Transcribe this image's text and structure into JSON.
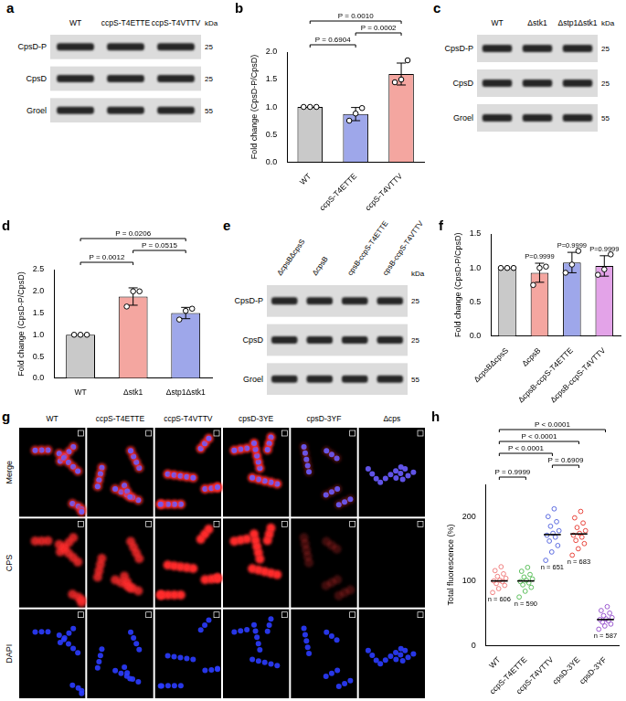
{
  "blots": [
    {
      "panel": "a",
      "lanes": [
        "WT",
        "ccpS-T4ETTE",
        "ccpS-T4VTTV"
      ],
      "rows": [
        "CpsD-P",
        "CpsD",
        "Groel"
      ],
      "markers": [
        25,
        25,
        55
      ],
      "marker_unit": "kDa"
    },
    {
      "panel": "c",
      "lanes": [
        "WT",
        "Δstk1",
        "Δstp1Δstk1"
      ],
      "rows": [
        "CpsD-P",
        "CpsD",
        "Groel"
      ],
      "markers": [
        25,
        25,
        55
      ],
      "marker_unit": "kDa"
    },
    {
      "panel": "e",
      "lanes": [
        "ΔcpsBΔcpsS",
        "ΔcpsB",
        "cpsB-ccpS-T4ETTE",
        "cpsB-ccpS-T4VTTV"
      ],
      "rows": [
        "CpsD-P",
        "CpsD",
        "Groel"
      ],
      "markers": [
        25,
        25,
        55
      ],
      "marker_unit": "kDa"
    }
  ],
  "micrographs": {
    "panel": "g",
    "columns": [
      "WT",
      "ccpS-T4ETTE",
      "ccpS-T4VTTV",
      "cpsD-3YE",
      "cpsD-3YF",
      "Δcps"
    ],
    "rows": [
      "Merge",
      "CPS",
      "DAPI"
    ]
  },
  "chart_data": [
    {
      "panel": "b",
      "type": "bar",
      "categories": [
        "WT",
        "ccpS-T4ETTE",
        "ccpS-T4VTTV"
      ],
      "values": [
        1.0,
        0.87,
        1.6
      ],
      "error": [
        0,
        0.12,
        0.2
      ],
      "points": [
        [
          1.0,
          1.0,
          1.0
        ],
        [
          0.75,
          0.88,
          0.98
        ],
        [
          1.45,
          1.5,
          1.85
        ]
      ],
      "colors": [
        "#c9c9c9",
        "#9ea7ea",
        "#f4a6a0"
      ],
      "y_label": "Fold change (CpsD-P/CpsD)",
      "ylim": [
        0,
        2
      ],
      "yticks": [
        {
          "value": 0,
          "label": "0.0"
        },
        0.5,
        {
          "value": 1,
          "label": "1.0"
        },
        1.5,
        {
          "value": 2,
          "label": "2.0"
        }
      ],
      "grid": false,
      "comparisons": [
        {
          "between": [
            "WT",
            "ccpS-T4ETTE"
          ],
          "label": "P = 0.6904"
        },
        {
          "between": [
            "ccpS-T4ETTE",
            "ccpS-T4VTTV"
          ],
          "label": "P = 0.0002"
        },
        {
          "between": [
            "WT",
            "ccpS-T4VTTV"
          ],
          "label": "P = 0.0010"
        }
      ]
    },
    {
      "panel": "d",
      "type": "bar",
      "categories": [
        "WT",
        "Δstk1",
        "Δstp1Δstk1"
      ],
      "values": [
        1.0,
        1.88,
        1.5
      ],
      "error": [
        0,
        0.2,
        0.13
      ],
      "points": [
        [
          1.0,
          1.0,
          1.0
        ],
        [
          1.65,
          2.0,
          2.0
        ],
        [
          1.35,
          1.55,
          1.6
        ]
      ],
      "colors": [
        "#c9c9c9",
        "#f4a6a0",
        "#9ea7ea"
      ],
      "y_label": "Fold change (CpsD-P/CpsD)",
      "ylim": [
        0,
        2.5
      ],
      "yticks": [
        {
          "value": 0,
          "label": "0.0"
        },
        0.5,
        {
          "value": 1,
          "label": "1.0"
        },
        1.5,
        {
          "value": 2,
          "label": "2.0"
        },
        2.5
      ],
      "grid": false,
      "comparisons": [
        {
          "between": [
            "WT",
            "Δstk1"
          ],
          "label": "P = 0.0012"
        },
        {
          "between": [
            "Δstk1",
            "Δstp1Δstk1"
          ],
          "label": "P = 0.0515"
        },
        {
          "between": [
            "WT",
            "Δstp1Δstk1"
          ],
          "label": "P = 0.0206"
        }
      ]
    },
    {
      "panel": "f",
      "type": "bar",
      "categories": [
        "ΔcpsBΔcpsS",
        "ΔcpsB",
        "ΔcpsB-ccpS-T4ETTE",
        "ΔcpsB-ccpS-T4VTTV"
      ],
      "values": [
        1.0,
        0.93,
        1.08,
        1.03
      ],
      "error": [
        0,
        0.14,
        0.15,
        0.15
      ],
      "points": [
        [
          1.0,
          1.0,
          1.0
        ],
        [
          0.75,
          1.0,
          1.02
        ],
        [
          0.93,
          1.05,
          1.25
        ],
        [
          0.9,
          0.98,
          1.2
        ]
      ],
      "colors": [
        "#c9c9c9",
        "#f4a6a0",
        "#9ea7ea",
        "#e3a3e8"
      ],
      "y_label": "Fold change (CpsD-P/CpsD)",
      "ylim": [
        0,
        1.5
      ],
      "yticks": [
        {
          "value": 0,
          "label": "0.0"
        },
        0.5,
        {
          "value": 1,
          "label": "1.0"
        },
        1.5
      ],
      "grid": false,
      "annotations": [
        {
          "category": "ΔcpsB",
          "label": "P=0.9999"
        },
        {
          "category": "ΔcpsB-ccpS-T4ETTE",
          "label": "P=0.9999"
        },
        {
          "category": "ΔcpsB-ccpS-T4VTTV",
          "label": "P=0.9999"
        }
      ]
    },
    {
      "panel": "h",
      "type": "scatter",
      "categories": [
        "WT",
        "ccpS-T4ETTE",
        "ccpS-T4VTTV",
        "cpsD-3YE",
        "cpsD-3YF"
      ],
      "points": [
        [
          82,
          88,
          93,
          96,
          99,
          100,
          101,
          104,
          107,
          111,
          116,
          122
        ],
        [
          75,
          84,
          90,
          94,
          97,
          99,
          101,
          103,
          106,
          110,
          115,
          121
        ],
        [
          132,
          145,
          155,
          162,
          168,
          171,
          174,
          178,
          185,
          192,
          200,
          212
        ],
        [
          140,
          150,
          158,
          163,
          168,
          171,
          174,
          178,
          183,
          190,
          198,
          208
        ],
        [
          25,
          30,
          33,
          36,
          38,
          40,
          41,
          43,
          46,
          50,
          54,
          60
        ]
      ],
      "medians": [
        100,
        100,
        172,
        173,
        40
      ],
      "n_labels": [
        "n = 606",
        "n = 590",
        "n = 651",
        "n = 683",
        "n = 587"
      ],
      "colors": [
        "#f08080",
        "#5cbf5c",
        "#5b6be0",
        "#e8453c",
        "#9b59d0"
      ],
      "y_label": "Total fluorescence (%)",
      "ylim": [
        0,
        250
      ],
      "yticks": [
        0,
        100,
        200
      ],
      "grid": false,
      "comparisons": [
        {
          "between": [
            "WT",
            "ccpS-T4ETTE"
          ],
          "label": "P = 0.9999"
        },
        {
          "between": [
            "ccpS-T4VTTV",
            "cpsD-3YE"
          ],
          "label": "P = 0.6909"
        },
        {
          "between": [
            "WT",
            "ccpS-T4VTTV"
          ],
          "label": "P < 0.0001"
        },
        {
          "between": [
            "WT",
            "cpsD-3YE"
          ],
          "label": "P < 0.0001"
        },
        {
          "between": [
            "WT",
            "cpsD-3YF"
          ],
          "label": "P < 0.0001"
        }
      ]
    }
  ]
}
